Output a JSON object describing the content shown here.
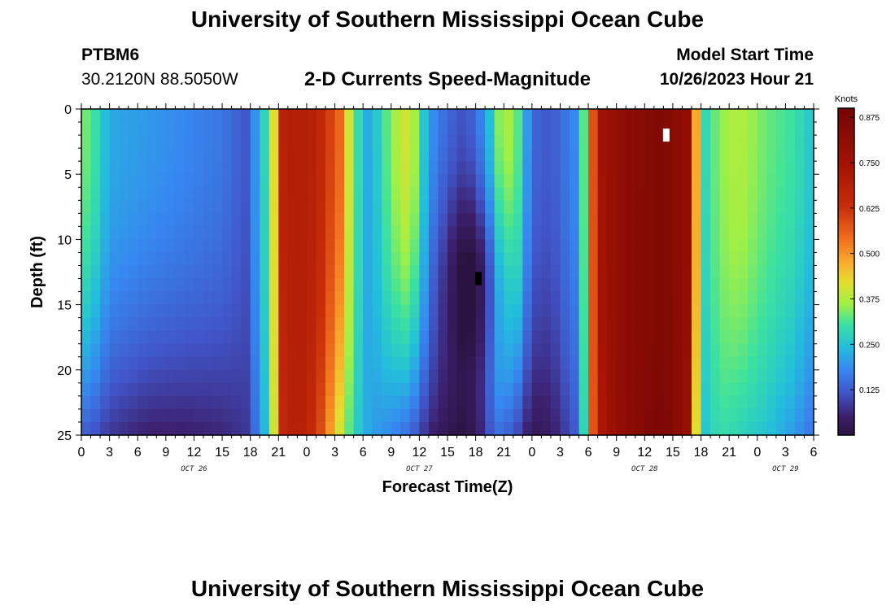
{
  "header": {
    "title": "University of Southern Mississippi Ocean Cube",
    "station": "PTBM6",
    "coords": "30.2120N  88.5050W",
    "chart_title": "2-D Currents Speed-Magnitude",
    "model_label": "Model Start Time",
    "model_time": "10/26/2023 Hour 21"
  },
  "footer": {
    "title": "University of Southern Mississippi Ocean Cube"
  },
  "chart_data": {
    "type": "heatmap",
    "title": "2-D Currents Speed-Magnitude",
    "xlabel": "Forecast Time(Z)",
    "ylabel": "Depth (ft)",
    "x_ticks": [
      "0",
      "3",
      "6",
      "9",
      "12",
      "15",
      "18",
      "21",
      "0",
      "3",
      "6",
      "9",
      "12",
      "15",
      "18",
      "21",
      "0",
      "3",
      "6",
      "9",
      "12",
      "15",
      "18",
      "21",
      "0",
      "3",
      "6"
    ],
    "x_range_hours": [
      0,
      78
    ],
    "date_labels": [
      {
        "text": "OCT 26",
        "hour": 12
      },
      {
        "text": "OCT 27",
        "hour": 36
      },
      {
        "text": "OCT 28",
        "hour": 60
      },
      {
        "text": "OCT 29",
        "hour": 75
      }
    ],
    "y_ticks": [
      "0",
      "5",
      "10",
      "15",
      "20",
      "25"
    ],
    "ylim": [
      0,
      25
    ],
    "colorbar": {
      "label": "Knots",
      "min": 0,
      "max": 0.9,
      "ticks": [
        "0.875",
        "0.750",
        "0.625",
        "0.500",
        "0.375",
        "0.250",
        "0.125"
      ],
      "tick_values": [
        0.875,
        0.75,
        0.625,
        0.5,
        0.375,
        0.25,
        0.125
      ]
    },
    "profile": {
      "hours": [
        0,
        1.5,
        3,
        7,
        11,
        15,
        17.5,
        19.3,
        20.5,
        21.5,
        23,
        25,
        27.5,
        29,
        30.5,
        31.5,
        33,
        35,
        37,
        39,
        40.5,
        42,
        43.5,
        44.5,
        46,
        48,
        50,
        52.5,
        53.5,
        54,
        55,
        57,
        60,
        62,
        64.5,
        65.5,
        66.3,
        68,
        70,
        73,
        76,
        78
      ],
      "surface_knots": [
        0.35,
        0.3,
        0.22,
        0.2,
        0.18,
        0.16,
        0.12,
        0.25,
        0.42,
        0.68,
        0.7,
        0.68,
        0.55,
        0.33,
        0.22,
        0.26,
        0.35,
        0.42,
        0.2,
        0.14,
        0.12,
        0.14,
        0.25,
        0.35,
        0.38,
        0.14,
        0.12,
        0.18,
        0.32,
        0.42,
        0.74,
        0.8,
        0.84,
        0.86,
        0.8,
        0.48,
        0.28,
        0.35,
        0.38,
        0.33,
        0.3,
        0.25
      ],
      "bottom_knots": [
        0.13,
        0.11,
        0.08,
        0.05,
        0.05,
        0.06,
        0.08,
        0.2,
        0.4,
        0.65,
        0.7,
        0.63,
        0.4,
        0.28,
        0.22,
        0.2,
        0.18,
        0.14,
        0.06,
        0.02,
        0.01,
        0.03,
        0.12,
        0.15,
        0.12,
        0.03,
        0.04,
        0.12,
        0.28,
        0.45,
        0.7,
        0.79,
        0.85,
        0.87,
        0.79,
        0.42,
        0.25,
        0.3,
        0.28,
        0.25,
        0.2,
        0.15
      ]
    },
    "markers": [
      {
        "name": "max-marker",
        "hour": 62.3,
        "depth": 2,
        "color": "#ffffff"
      },
      {
        "name": "min-marker",
        "hour": 42.3,
        "depth": 13,
        "color": "#000000"
      }
    ]
  }
}
